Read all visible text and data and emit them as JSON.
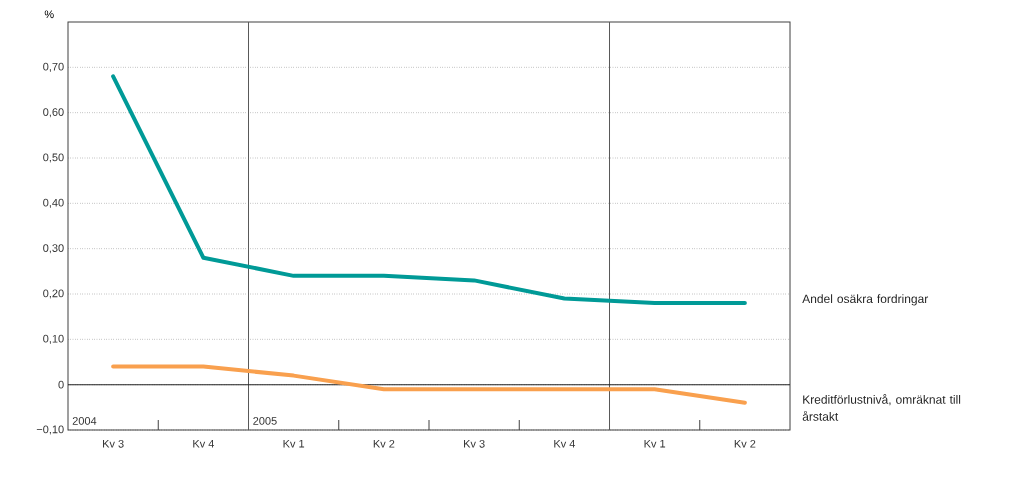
{
  "chart_data": {
    "type": "line",
    "ylabel": "%",
    "categories": [
      "Kv 3",
      "Kv 4",
      "Kv 1",
      "Kv 2",
      "Kv 3",
      "Kv 4",
      "Kv 1",
      "Kv 2"
    ],
    "series": [
      {
        "name": "Andel osäkra fordringar",
        "color": "#009a97",
        "values": [
          0.68,
          0.28,
          0.24,
          0.24,
          0.23,
          0.19,
          0.18,
          0.18
        ]
      },
      {
        "name": "Kreditförlustnivå, omräknat till årstakt",
        "color": "#f9a04e",
        "values": [
          0.04,
          0.04,
          0.02,
          -0.01,
          -0.01,
          -0.01,
          -0.01,
          -0.04
        ]
      }
    ],
    "ylim": [
      -0.1,
      0.8
    ],
    "yticks": [
      {
        "value": -0.1,
        "label": "−0,10"
      },
      {
        "value": 0,
        "label": "0"
      },
      {
        "value": 0.1,
        "label": "0,10"
      },
      {
        "value": 0.2,
        "label": "0,20"
      },
      {
        "value": 0.3,
        "label": "0,30"
      },
      {
        "value": 0.4,
        "label": "0,40"
      },
      {
        "value": 0.5,
        "label": "0,50"
      },
      {
        "value": 0.6,
        "label": "0,60"
      },
      {
        "value": 0.7,
        "label": "0,70"
      }
    ],
    "ref_lines": [
      {
        "axis": "y",
        "value": 0,
        "color": "#222222"
      }
    ],
    "annotations": [
      "2004",
      "2005"
    ],
    "grid": "y",
    "marker": "none",
    "line_style": "solid"
  }
}
